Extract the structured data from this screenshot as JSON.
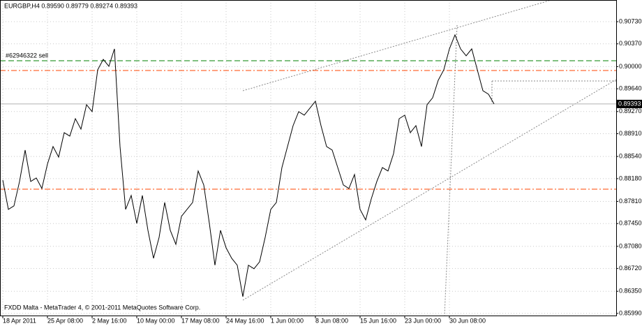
{
  "chart_data": {
    "type": "line",
    "title": "EURGBP,H4  0.89590 0.89779 0.89274 0.89393",
    "footer": "FXDD Malta - MetaTrader 4, © 2001-2011 MetaQuotes Software Corp.",
    "categories": [
      "18 Apr 2011",
      null,
      null,
      null,
      null,
      null,
      null,
      null,
      "25 Apr 08:00",
      null,
      null,
      null,
      null,
      null,
      null,
      null,
      "2 May 16:00",
      null,
      null,
      null,
      null,
      null,
      null,
      null,
      "10 May 00:00",
      null,
      null,
      null,
      null,
      null,
      null,
      null,
      "17 May 08:00",
      null,
      null,
      null,
      null,
      null,
      null,
      null,
      "24 May 16:00",
      null,
      null,
      null,
      null,
      null,
      null,
      null,
      "1 Jun 00:00",
      null,
      null,
      null,
      null,
      null,
      null,
      null,
      "8 Jun 08:00",
      null,
      null,
      null,
      null,
      null,
      null,
      null,
      "15 Jun 16:00",
      null,
      null,
      null,
      null,
      null,
      null,
      null,
      "23 Jun 00:00",
      null,
      null,
      null,
      null,
      null,
      null,
      null,
      "30 Jun 08:00",
      null,
      null,
      null,
      null,
      null,
      null,
      null,
      null
    ],
    "values": [
      0.88156,
      0.8768,
      0.87737,
      0.88134,
      0.88644,
      0.88134,
      0.8819,
      0.8802,
      0.88417,
      0.88701,
      0.8853,
      0.88927,
      0.88871,
      0.89154,
      0.88984,
      0.89381,
      0.89268,
      0.89948,
      0.90118,
      0.90005,
      0.90288,
      0.88701,
      0.8768,
      0.87907,
      0.87453,
      0.87907,
      0.8734,
      0.86886,
      0.87226,
      0.87793,
      0.8734,
      0.87113,
      0.87567,
      0.8768,
      0.87793,
      0.88304,
      0.88077,
      0.87453,
      0.86773,
      0.8734,
      0.87056,
      0.86886,
      0.86773,
      0.86262,
      0.86773,
      0.86716,
      0.86829,
      0.87226,
      0.8768,
      0.87793,
      0.8836,
      0.88701,
      0.89041,
      0.89268,
      0.89211,
      0.89324,
      0.89438,
      0.89041,
      0.88701,
      0.88644,
      0.8836,
      0.88077,
      0.8802,
      0.88247,
      0.8768,
      0.8751,
      0.8785,
      0.88134,
      0.8836,
      0.88304,
      0.88587,
      0.89154,
      0.89211,
      0.88927,
      0.89041,
      0.88701,
      0.89381,
      0.89494,
      0.89778,
      0.89948,
      0.90288,
      0.90515,
      0.90288,
      0.90175,
      0.90288,
      0.89948,
      0.89608,
      0.89551,
      0.89393
    ],
    "color": "#000000",
    "ylim": [
      0.85956,
      0.91082
    ],
    "yticks": [
      {
        "value": 0.9073,
        "label": "0.90730"
      },
      {
        "value": 0.9037,
        "label": "0.90370"
      },
      {
        "value": 0.9,
        "label": "0.90000"
      },
      {
        "value": 0.8964,
        "label": "0.89640"
      },
      {
        "value": 0.8927,
        "label": "0.89270"
      },
      {
        "value": 0.8891,
        "label": "0.88910"
      },
      {
        "value": 0.8854,
        "label": "0.88540"
      },
      {
        "value": 0.8818,
        "label": "0.88180"
      },
      {
        "value": 0.8781,
        "label": "0.87810"
      },
      {
        "value": 0.8745,
        "label": "0.87450"
      },
      {
        "value": 0.8708,
        "label": "0.87080"
      },
      {
        "value": 0.8672,
        "label": "0.86720"
      },
      {
        "value": 0.8635,
        "label": "0.86350"
      },
      {
        "value": 0.8599,
        "label": "0.85990"
      }
    ],
    "grid": true,
    "levels": [
      {
        "value": 0.90095,
        "color": "#008000",
        "style": "dash",
        "label": "#62946322 sell"
      },
      {
        "value": 0.89937,
        "color": "#ff4500",
        "style": "dashdot"
      },
      {
        "value": 0.88009,
        "color": "#ff4500",
        "style": "dashdot"
      }
    ],
    "bid": 0.89393
  }
}
